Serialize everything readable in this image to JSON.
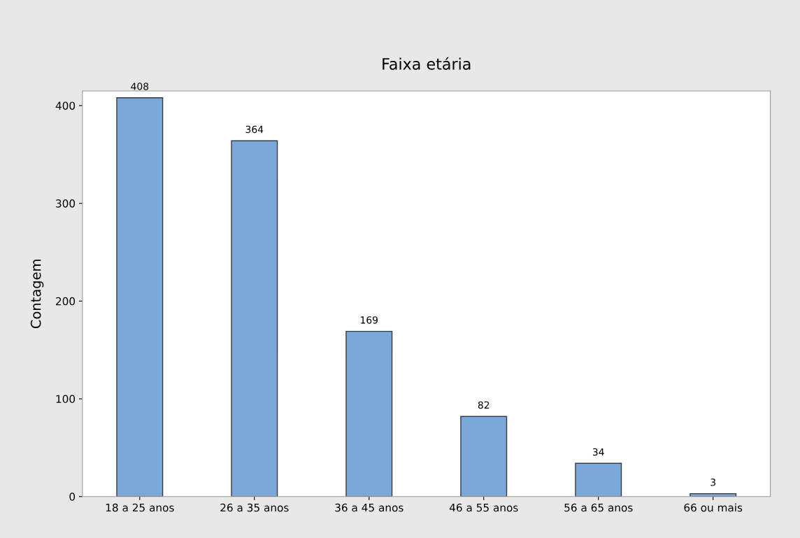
{
  "chart_data": {
    "type": "bar",
    "title": "Faixa etária",
    "ylabel": "Contagem",
    "categories": [
      "18 a 25 anos",
      "26 a 35 anos",
      "36 a 45 anos",
      "46 a 55 anos",
      "56 a 65 anos",
      "66 ou mais"
    ],
    "values": [
      408,
      364,
      169,
      82,
      34,
      3
    ],
    "color": "#7ba7d9",
    "ylim": [
      0,
      415
    ],
    "yticks": [
      0,
      100,
      200,
      300,
      400
    ],
    "grid": false,
    "data_labels": true
  }
}
